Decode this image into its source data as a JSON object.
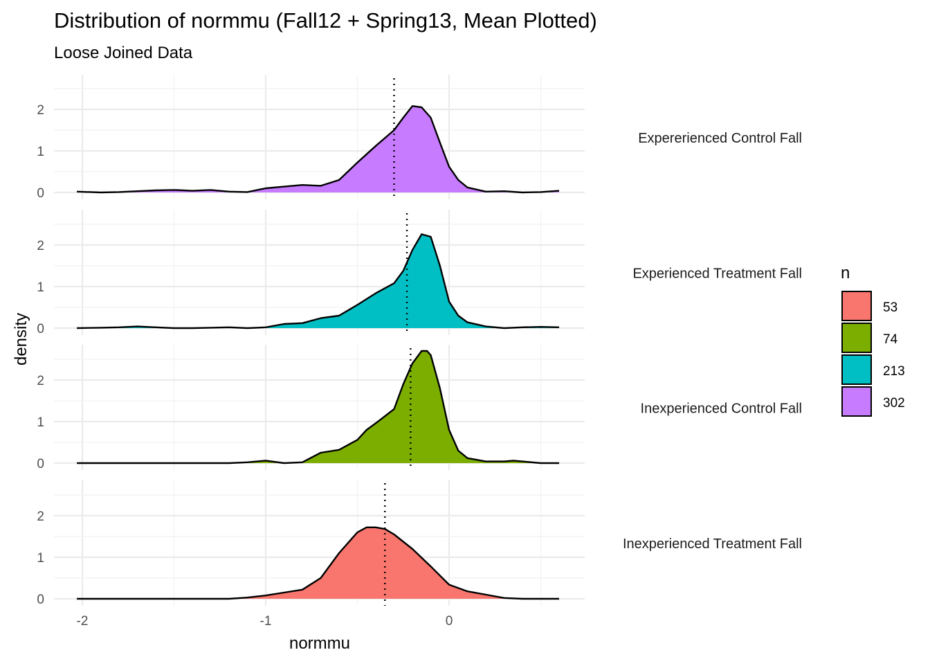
{
  "chart_data": {
    "type": "area",
    "title": "Distribution of normmu (Fall12 + Spring13, Mean Plotted)",
    "subtitle": "Loose Joined Data",
    "xlabel": "normmu",
    "ylabel": "density",
    "xlim": [
      -2.05,
      0.73
    ],
    "ylim": [
      -0.1,
      2.8
    ],
    "x_ticks": [
      -2,
      -1,
      0
    ],
    "x_tick_labels": [
      "-2",
      "-1",
      "0"
    ],
    "y_ticks": [
      0,
      1,
      2
    ],
    "y_tick_labels": [
      "0",
      "1",
      "2"
    ],
    "grid": true,
    "legend": {
      "title": "n",
      "position": "right",
      "entries": [
        {
          "label": "53",
          "color": "#F8766D"
        },
        {
          "label": "74",
          "color": "#7CAE00"
        },
        {
          "label": "213",
          "color": "#00BFC4"
        },
        {
          "label": "302",
          "color": "#C77CFF"
        }
      ]
    },
    "panels": [
      {
        "label": "Expererienced Control Fall",
        "fill": "#C77CFF",
        "mean": -0.3,
        "x": [
          -2.03,
          -1.9,
          -1.8,
          -1.7,
          -1.6,
          -1.5,
          -1.4,
          -1.3,
          -1.2,
          -1.1,
          -1.0,
          -0.9,
          -0.8,
          -0.7,
          -0.6,
          -0.5,
          -0.4,
          -0.3,
          -0.25,
          -0.2,
          -0.15,
          -0.1,
          -0.05,
          0.0,
          0.05,
          0.1,
          0.2,
          0.3,
          0.4,
          0.5,
          0.6
        ],
        "y": [
          0.02,
          0.0,
          0.01,
          0.03,
          0.05,
          0.06,
          0.04,
          0.06,
          0.02,
          0.01,
          0.1,
          0.14,
          0.18,
          0.16,
          0.3,
          0.72,
          1.12,
          1.5,
          1.8,
          2.08,
          2.05,
          1.8,
          1.2,
          0.62,
          0.3,
          0.12,
          0.02,
          0.03,
          0.0,
          0.01,
          0.04
        ]
      },
      {
        "label": "Experienced Treatment Fall",
        "fill": "#00BFC4",
        "mean": -0.23,
        "x": [
          -2.03,
          -1.9,
          -1.8,
          -1.7,
          -1.6,
          -1.5,
          -1.4,
          -1.3,
          -1.2,
          -1.1,
          -1.0,
          -0.9,
          -0.8,
          -0.7,
          -0.6,
          -0.5,
          -0.4,
          -0.3,
          -0.25,
          -0.2,
          -0.15,
          -0.1,
          -0.05,
          0.0,
          0.05,
          0.1,
          0.2,
          0.3,
          0.4,
          0.5,
          0.6
        ],
        "y": [
          0.0,
          0.01,
          0.02,
          0.04,
          0.02,
          0.0,
          0.0,
          0.01,
          0.02,
          0.0,
          0.02,
          0.1,
          0.12,
          0.24,
          0.3,
          0.56,
          0.84,
          1.08,
          1.38,
          1.88,
          2.26,
          2.2,
          1.5,
          0.64,
          0.3,
          0.14,
          0.04,
          0.0,
          0.02,
          0.03,
          0.02
        ]
      },
      {
        "label": "Inexperienced Control Fall",
        "fill": "#7CAE00",
        "mean": -0.21,
        "x": [
          -2.03,
          -1.8,
          -1.6,
          -1.4,
          -1.2,
          -1.1,
          -1.0,
          -0.9,
          -0.8,
          -0.7,
          -0.6,
          -0.5,
          -0.45,
          -0.4,
          -0.3,
          -0.25,
          -0.2,
          -0.15,
          -0.12,
          -0.1,
          -0.05,
          0.0,
          0.05,
          0.1,
          0.2,
          0.3,
          0.35,
          0.4,
          0.5,
          0.6
        ],
        "y": [
          0.0,
          0.0,
          0.0,
          0.0,
          0.0,
          0.02,
          0.06,
          0.0,
          0.02,
          0.25,
          0.32,
          0.56,
          0.8,
          0.96,
          1.3,
          1.9,
          2.4,
          2.7,
          2.7,
          2.6,
          1.8,
          0.8,
          0.3,
          0.12,
          0.04,
          0.04,
          0.06,
          0.04,
          0.0,
          0.0
        ]
      },
      {
        "label": "Inexperienced Treatment Fall",
        "fill": "#F8766D",
        "mean": -0.35,
        "x": [
          -2.03,
          -1.8,
          -1.6,
          -1.4,
          -1.2,
          -1.1,
          -1.0,
          -0.9,
          -0.8,
          -0.7,
          -0.6,
          -0.5,
          -0.45,
          -0.4,
          -0.35,
          -0.3,
          -0.2,
          -0.1,
          0.0,
          0.1,
          0.2,
          0.3,
          0.4,
          0.5,
          0.6
        ],
        "y": [
          0.0,
          0.0,
          0.0,
          0.0,
          0.0,
          0.03,
          0.08,
          0.15,
          0.22,
          0.5,
          1.1,
          1.6,
          1.72,
          1.72,
          1.68,
          1.55,
          1.2,
          0.78,
          0.34,
          0.18,
          0.1,
          0.02,
          0.0,
          0.0,
          0.0
        ]
      }
    ]
  }
}
